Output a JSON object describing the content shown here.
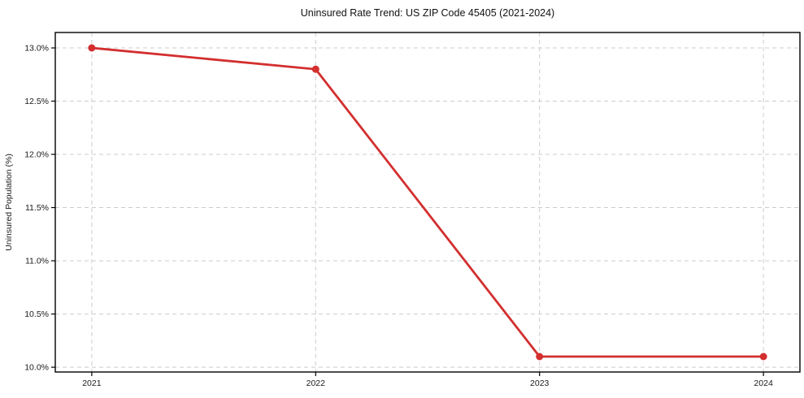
{
  "chart_data": {
    "type": "line",
    "title": "Uninsured Rate Trend: US ZIP Code 45405 (2021-2024)",
    "xlabel": "",
    "ylabel": "Uninsured Population (%)",
    "categories": [
      "2021",
      "2022",
      "2023",
      "2024"
    ],
    "values": [
      13.0,
      12.8,
      10.1,
      10.1
    ],
    "ytick_labels": [
      "10.0%",
      "10.5%",
      "11.0%",
      "11.5%",
      "12.0%",
      "12.5%",
      "13.0%"
    ],
    "yticks": [
      10.0,
      10.5,
      11.0,
      11.5,
      12.0,
      12.5,
      13.0
    ],
    "ylim": [
      9.955,
      13.145
    ],
    "grid": true,
    "grid_style": "dashed",
    "legend": "none",
    "line_color": "#d32f2f",
    "marker": "circle",
    "grid_color": "#cccccc",
    "axis_color": "#000000"
  }
}
